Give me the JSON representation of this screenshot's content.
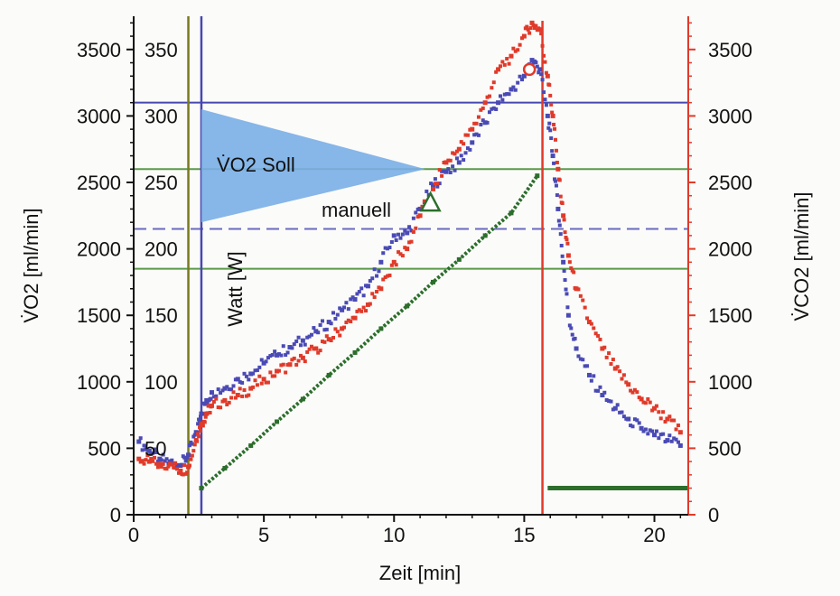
{
  "chart_data": {
    "type": "scatter",
    "xlabel": "Zeit [min]",
    "ylabel_left": "V̇O2 [ml/min]",
    "ylabel_right": "V̇CO2 [ml/min]",
    "watt_label": "Watt [W]",
    "xlim": [
      0,
      21.3
    ],
    "ylim": [
      0,
      3750
    ],
    "watt_lim": [
      0,
      375
    ],
    "x_ticks": [
      "0",
      "5",
      "10",
      "15",
      "20"
    ],
    "y_ticks_left": [
      "0",
      "500",
      "1000",
      "1500",
      "2000",
      "2500",
      "3000",
      "3500"
    ],
    "y_ticks_right": [
      "0",
      "500",
      "1000",
      "1500",
      "2000",
      "2500",
      "3000",
      "3500"
    ],
    "watt_ticks": [
      "50",
      "100",
      "150",
      "200",
      "250",
      "300",
      "350"
    ],
    "annotations": {
      "soll_label": "V̇O2 Soll",
      "manuell_label": "manuell"
    },
    "reference_lines": {
      "vertical_olive_x": 2.1,
      "vertical_blue_x": 2.6,
      "vertical_red_x": 15.7,
      "h_blue_solid_y": 3100,
      "h_blue_dashed_y": 2150,
      "h_green_upper_y": 2600,
      "h_green_lower_y": 1850
    },
    "soll_triangle": {
      "x_start": 2.6,
      "y_top": 3050,
      "y_bottom": 2200,
      "x_tip": 11.2,
      "y_tip": 2600
    },
    "manuell_marker": {
      "x": 11.4,
      "y": 2350
    },
    "peak_marker": {
      "x": 15.2,
      "y": 3350
    },
    "series": [
      {
        "name": "V̇O2",
        "color": "#4a4ab5",
        "x": [
          0.2,
          0.6,
          1.0,
          1.4,
          1.8,
          2.1,
          2.4,
          2.6,
          2.8,
          3.0,
          3.5,
          4.0,
          4.5,
          5.0,
          5.5,
          6.0,
          6.5,
          7.0,
          7.5,
          8.0,
          8.5,
          9.0,
          9.5,
          10.0,
          10.5,
          11.0,
          11.5,
          12.0,
          12.5,
          13.0,
          13.5,
          14.0,
          14.5,
          15.0,
          15.3,
          15.6,
          15.9,
          16.1,
          16.3,
          16.5,
          16.7,
          17.0,
          17.5,
          18.0,
          18.5,
          19.0,
          19.5,
          20.0,
          20.5,
          21.0
        ],
        "y": [
          550,
          480,
          420,
          400,
          370,
          450,
          620,
          760,
          860,
          920,
          950,
          1020,
          1060,
          1140,
          1200,
          1260,
          1310,
          1380,
          1450,
          1540,
          1620,
          1720,
          1900,
          2100,
          2120,
          2300,
          2480,
          2580,
          2650,
          2800,
          2950,
          3100,
          3200,
          3300,
          3420,
          3350,
          3000,
          2700,
          2300,
          1900,
          1500,
          1250,
          1050,
          900,
          800,
          720,
          650,
          600,
          560,
          520
        ]
      },
      {
        "name": "V̇CO2",
        "color": "#e03a2a",
        "x": [
          0.2,
          0.6,
          1.0,
          1.4,
          1.8,
          2.1,
          2.4,
          2.6,
          2.8,
          3.0,
          3.5,
          4.0,
          4.5,
          5.0,
          5.5,
          6.0,
          6.5,
          7.0,
          7.5,
          8.0,
          8.5,
          9.0,
          9.5,
          10.0,
          10.5,
          11.0,
          11.5,
          12.0,
          12.5,
          13.0,
          13.5,
          14.0,
          14.5,
          15.0,
          15.3,
          15.6,
          15.9,
          16.1,
          16.3,
          16.5,
          16.7,
          17.0,
          17.5,
          18.0,
          18.5,
          19.0,
          19.5,
          20.0,
          20.5,
          21.0
        ],
        "y": [
          420,
          400,
          380,
          380,
          330,
          360,
          560,
          680,
          760,
          820,
          860,
          900,
          950,
          1020,
          1080,
          1130,
          1180,
          1250,
          1320,
          1400,
          1480,
          1580,
          1700,
          1900,
          2000,
          2250,
          2450,
          2650,
          2750,
          2900,
          3100,
          3350,
          3450,
          3600,
          3700,
          3650,
          3300,
          3000,
          2600,
          2250,
          1950,
          1700,
          1450,
          1250,
          1100,
          980,
          870,
          800,
          720,
          620
        ]
      },
      {
        "name": "Watt",
        "color": "#2c6e2c",
        "x": [
          2.6,
          3.5,
          4.5,
          5.5,
          6.5,
          7.5,
          8.5,
          9.5,
          10.5,
          11.5,
          12.5,
          13.5,
          14.5,
          15.5
        ],
        "y": [
          20,
          35,
          52,
          70,
          87,
          105,
          122,
          140,
          157,
          175,
          192,
          210,
          227,
          255
        ]
      }
    ]
  }
}
